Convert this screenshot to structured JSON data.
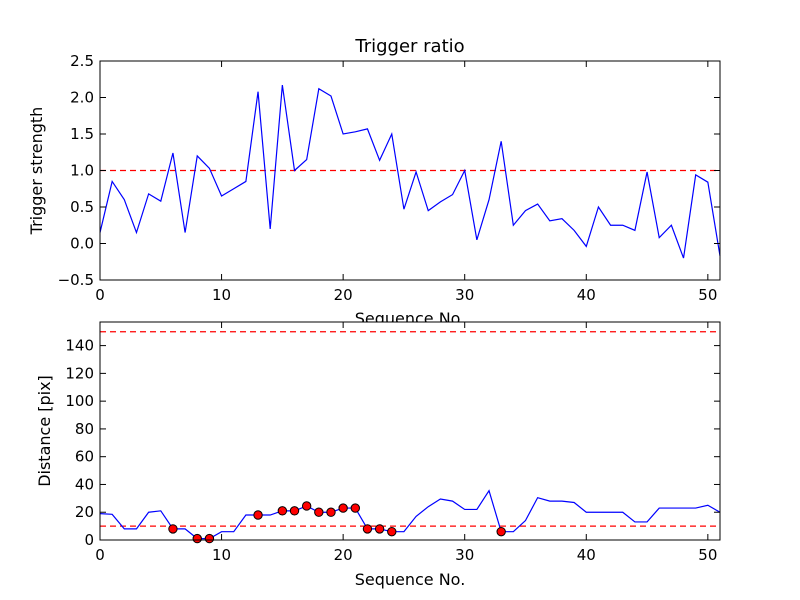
{
  "chart_data": [
    {
      "type": "line",
      "title": "Trigger ratio",
      "xlabel": "Sequence No.",
      "ylabel": "Trigger strength",
      "xlim": [
        0,
        51
      ],
      "ylim": [
        -0.5,
        2.5
      ],
      "xticks": [
        0,
        10,
        20,
        30,
        40,
        50
      ],
      "yticks": [
        -0.5,
        0.0,
        0.5,
        1.0,
        1.5,
        2.0,
        2.5
      ],
      "ytick_labels": [
        "−0.5",
        "0.0",
        "0.5",
        "1.0",
        "1.5",
        "2.0",
        "2.5"
      ],
      "threshold_lines": [
        {
          "y": 1.0,
          "color": "#ff0000",
          "style": "dashed"
        }
      ],
      "series": [
        {
          "name": "trigger strength",
          "color": "#0000ff",
          "x": [
            0,
            1,
            2,
            3,
            4,
            5,
            6,
            7,
            8,
            9,
            10,
            11,
            12,
            13,
            14,
            15,
            16,
            17,
            18,
            19,
            20,
            21,
            22,
            23,
            24,
            25,
            26,
            27,
            28,
            29,
            30,
            31,
            32,
            33,
            34,
            35,
            36,
            37,
            38,
            39,
            40,
            41,
            42,
            43,
            44,
            45,
            46,
            47,
            48,
            49,
            50,
            51
          ],
          "values": [
            0.15,
            0.85,
            0.6,
            0.15,
            0.68,
            0.58,
            1.24,
            0.15,
            1.2,
            1.03,
            0.65,
            0.75,
            0.85,
            2.08,
            0.2,
            2.17,
            1.0,
            1.15,
            2.12,
            2.02,
            1.5,
            1.53,
            1.57,
            1.14,
            1.5,
            0.47,
            0.98,
            0.45,
            0.57,
            0.67,
            1.0,
            0.05,
            0.6,
            1.4,
            0.25,
            0.45,
            0.54,
            0.31,
            0.34,
            0.18,
            -0.04,
            0.5,
            0.25,
            0.25,
            0.18,
            0.98,
            0.08,
            0.25,
            -0.2,
            0.94,
            0.84,
            -0.17
          ]
        }
      ]
    },
    {
      "type": "line",
      "title": "",
      "xlabel": "Sequence No.",
      "ylabel": "Distance [pix]",
      "xlim": [
        0,
        51
      ],
      "ylim": [
        0,
        157
      ],
      "xticks": [
        0,
        10,
        20,
        30,
        40,
        50
      ],
      "yticks": [
        0,
        20,
        40,
        60,
        80,
        100,
        120,
        140
      ],
      "threshold_lines": [
        {
          "y": 150,
          "color": "#ff0000",
          "style": "dashed"
        },
        {
          "y": 10,
          "color": "#ff0000",
          "style": "dashed"
        }
      ],
      "series": [
        {
          "name": "distance",
          "color": "#0000ff",
          "x": [
            0,
            1,
            2,
            3,
            4,
            5,
            6,
            7,
            8,
            9,
            10,
            11,
            12,
            13,
            14,
            15,
            16,
            17,
            18,
            19,
            20,
            21,
            22,
            23,
            24,
            25,
            26,
            27,
            28,
            29,
            30,
            31,
            32,
            33,
            34,
            35,
            36,
            37,
            38,
            39,
            40,
            41,
            42,
            43,
            44,
            45,
            46,
            47,
            48,
            49,
            50,
            51
          ],
          "values": [
            19,
            18.5,
            8,
            8,
            20,
            21,
            8,
            8,
            1,
            1,
            6,
            6,
            18,
            18,
            18,
            21,
            21,
            24.5,
            20,
            20,
            23,
            23,
            8,
            8,
            6,
            6,
            17,
            24,
            29.5,
            28,
            22,
            22,
            35.5,
            6,
            6,
            14,
            30.5,
            28,
            28,
            27,
            20,
            20,
            20,
            20,
            13,
            13,
            23,
            23,
            23,
            23,
            25,
            20
          ]
        },
        {
          "name": "markers",
          "type": "scatter",
          "color": "#ff0000",
          "x": [
            6,
            8,
            9,
            13,
            15,
            16,
            17,
            18,
            19,
            20,
            21,
            22,
            23,
            24,
            33
          ],
          "values": [
            8,
            1,
            1,
            18,
            21,
            21,
            24.5,
            20,
            20,
            23,
            23,
            8,
            8,
            6,
            6
          ]
        }
      ]
    }
  ]
}
